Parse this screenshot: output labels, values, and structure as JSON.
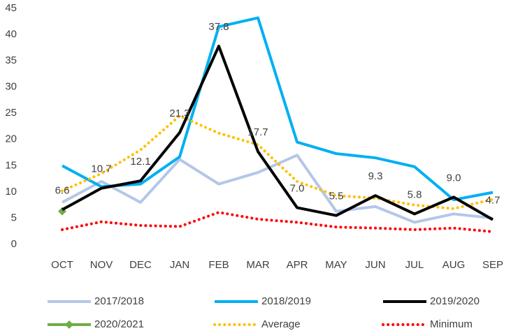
{
  "chart_data": {
    "type": "line",
    "categories": [
      "OCT",
      "NOV",
      "DEC",
      "JAN",
      "FEB",
      "MAR",
      "APR",
      "MAY",
      "JUN",
      "JUL",
      "AUG",
      "SEP"
    ],
    "series": [
      {
        "name": "2017/2018",
        "color": "#b4c7e7",
        "style": "solid",
        "values": [
          8,
          12,
          8,
          16.2,
          11.5,
          13.7,
          17,
          6.3,
          7.2,
          4.2,
          5.8,
          5
        ]
      },
      {
        "name": "2018/2019",
        "color": "#00b0f0",
        "style": "solid",
        "values": [
          15,
          11,
          11.5,
          16.7,
          41.5,
          43.2,
          19.5,
          17.3,
          16.5,
          14.8,
          8.5,
          9.9
        ]
      },
      {
        "name": "2019/2020",
        "color": "#000000",
        "style": "solid",
        "values": [
          6.6,
          10.7,
          12.1,
          21.3,
          37.8,
          17.7,
          7.0,
          5.5,
          9.3,
          5.8,
          9.0,
          4.7
        ],
        "value_labels": [
          "6.6",
          "10.7",
          "12.1",
          "21.3",
          "37.8",
          "17.7",
          "7.0",
          "5.5",
          "9.3",
          "5.8",
          "9.0",
          "4.7"
        ]
      },
      {
        "name": "2020/2021",
        "color": "#70ad47",
        "style": "solid",
        "marker": "diamond",
        "values": [
          6.3,
          null,
          null,
          null,
          null,
          null,
          null,
          null,
          null,
          null,
          null,
          null
        ]
      },
      {
        "name": "Average",
        "color": "#ffc000",
        "style": "dotted",
        "values": [
          10.2,
          13.5,
          18,
          24.5,
          21.2,
          19,
          12,
          9.3,
          8.8,
          7.5,
          6.8,
          8.6
        ]
      },
      {
        "name": "Minimum",
        "color": "#ff0000",
        "style": "dotted",
        "values": [
          2.8,
          4.3,
          3.6,
          3.4,
          6.1,
          4.8,
          4.2,
          3.3,
          3.1,
          2.8,
          3.1,
          2.4
        ]
      }
    ],
    "ylim": [
      0,
      45
    ],
    "yticks": [
      0,
      5,
      10,
      15,
      20,
      25,
      30,
      35,
      40,
      45
    ],
    "grid": false,
    "legend": "bottom"
  }
}
